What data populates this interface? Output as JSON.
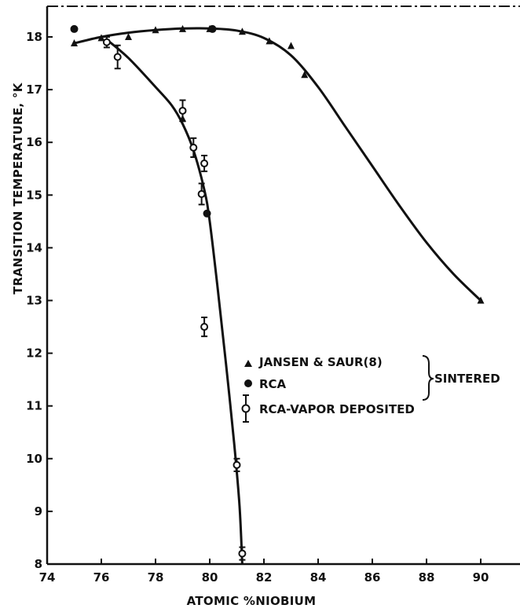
{
  "chart_data": {
    "type": "scatter",
    "title": "",
    "xlabel": "ATOMIC %NIOBIUM",
    "ylabel": "TRANSITION TEMPERATURE, °K",
    "xlim": [
      74,
      92
    ],
    "ylim": [
      8,
      18.6
    ],
    "x_ticks": [
      "74",
      "76",
      "78",
      "80",
      "82",
      "84",
      "86",
      "88",
      "90"
    ],
    "y_ticks": [
      "8",
      "9",
      "10",
      "11",
      "12",
      "13",
      "14",
      "15",
      "16",
      "17",
      "18"
    ],
    "grid": false,
    "legend_position": "center-right",
    "group_label": "SINTERED",
    "series": [
      {
        "name": "JANSEN & SAUR(8)",
        "marker": "triangle",
        "points": [
          [
            75,
            17.88
          ],
          [
            76,
            17.98
          ],
          [
            77,
            18.0
          ],
          [
            78,
            18.13
          ],
          [
            79,
            18.15
          ],
          [
            80,
            18.15
          ],
          [
            81.2,
            18.1
          ],
          [
            82.2,
            17.92
          ],
          [
            83,
            17.83
          ],
          [
            83.5,
            17.28
          ],
          [
            90,
            13.0
          ],
          [
            79,
            16.45
          ]
        ]
      },
      {
        "name": "RCA",
        "marker": "filled-circle",
        "points": [
          [
            75,
            18.15
          ],
          [
            80.1,
            18.15
          ],
          [
            79.9,
            14.65
          ]
        ]
      },
      {
        "name": "RCA-VAPOR DEPOSITED",
        "marker": "open-circle-errorbar",
        "points": [
          [
            76.2,
            17.9
          ],
          [
            76.6,
            17.62
          ],
          [
            79.0,
            16.6
          ],
          [
            79.4,
            15.9
          ],
          [
            79.7,
            15.02
          ],
          [
            79.8,
            15.6
          ],
          [
            79.8,
            12.5
          ],
          [
            81.0,
            9.88
          ],
          [
            81.2,
            8.2
          ]
        ],
        "errors": [
          0.1,
          0.22,
          0.2,
          0.18,
          0.2,
          0.15,
          0.18,
          0.12,
          0.12
        ]
      }
    ],
    "fit_curves": [
      {
        "follows": "JANSEN & SAUR(8)",
        "points": [
          [
            75,
            17.88
          ],
          [
            76,
            18.0
          ],
          [
            77,
            18.08
          ],
          [
            78,
            18.13
          ],
          [
            79,
            18.16
          ],
          [
            80,
            18.16
          ],
          [
            81,
            18.12
          ],
          [
            82,
            17.98
          ],
          [
            83,
            17.65
          ],
          [
            84,
            17.05
          ],
          [
            85,
            16.3
          ],
          [
            86,
            15.55
          ],
          [
            87,
            14.8
          ],
          [
            88,
            14.1
          ],
          [
            89,
            13.5
          ],
          [
            90,
            13.0
          ]
        ]
      },
      {
        "follows": "RCA-VAPOR DEPOSITED",
        "points": [
          [
            76.2,
            17.95
          ],
          [
            77,
            17.6
          ],
          [
            78,
            17.05
          ],
          [
            78.6,
            16.7
          ],
          [
            79,
            16.35
          ],
          [
            79.4,
            15.85
          ],
          [
            79.8,
            15.1
          ],
          [
            80,
            14.5
          ],
          [
            80.3,
            13.2
          ],
          [
            80.6,
            11.8
          ],
          [
            80.9,
            10.3
          ],
          [
            81.1,
            9.1
          ],
          [
            81.2,
            8.0
          ]
        ]
      }
    ]
  }
}
